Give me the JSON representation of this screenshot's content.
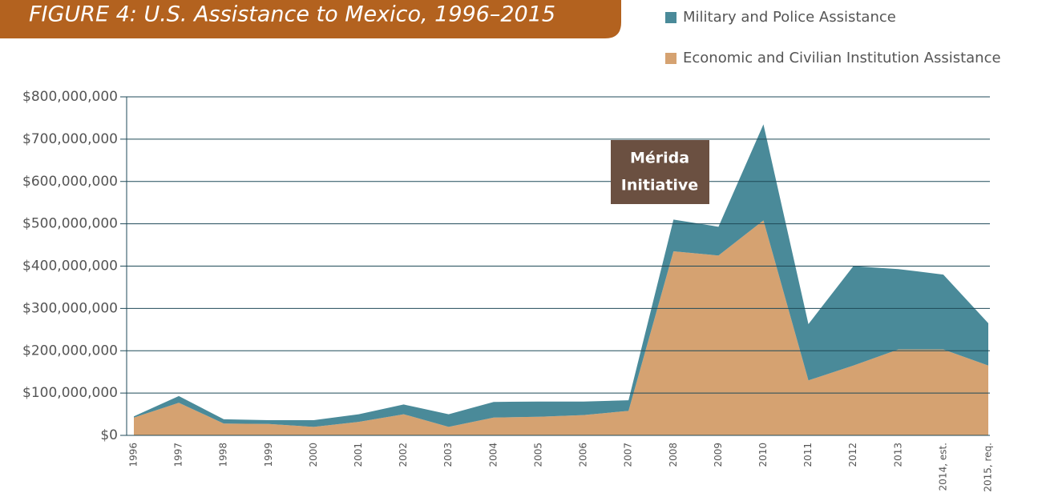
{
  "chart_data": {
    "type": "stacked-area",
    "title": "FIGURE 4: U.S. Assistance to Mexico, 1996–2015",
    "annotation": [
      "Mérida",
      "Initiative"
    ],
    "categories": [
      "1996",
      "1997",
      "1998",
      "1999",
      "2000",
      "2001",
      "2002",
      "2003",
      "2004",
      "2005",
      "2006",
      "2007",
      "2008",
      "2009",
      "2010",
      "2011",
      "2012",
      "2013",
      "2014, est.",
      "2015, req."
    ],
    "series": [
      {
        "name": "Economic and Civilian Institution Assistance",
        "color": "#d5a271",
        "values": [
          42000000,
          77000000,
          28000000,
          27000000,
          20000000,
          32000000,
          50000000,
          20000000,
          42000000,
          44000000,
          48000000,
          58000000,
          435000000,
          425000000,
          508000000,
          130000000,
          165000000,
          203000000,
          203000000,
          165000000
        ]
      },
      {
        "name": "Military and Police Assistance",
        "color": "#4a8a99",
        "values": [
          3000000,
          16000000,
          10000000,
          9000000,
          16000000,
          18000000,
          23000000,
          30000000,
          37000000,
          36000000,
          32000000,
          25000000,
          75000000,
          68000000,
          227000000,
          133000000,
          235000000,
          190000000,
          177000000,
          100000000
        ]
      }
    ],
    "ylim": [
      0,
      800000000
    ],
    "yticks": [
      {
        "value": 0,
        "label": "$0"
      },
      {
        "value": 100000000,
        "label": "$100,000,000"
      },
      {
        "value": 200000000,
        "label": "$200,000,000"
      },
      {
        "value": 300000000,
        "label": "$300,000,000"
      },
      {
        "value": 400000000,
        "label": "$400,000,000"
      },
      {
        "value": 500000000,
        "label": "$500,000,000"
      },
      {
        "value": 600000000,
        "label": "$600,000,000"
      },
      {
        "value": 700000000,
        "label": "$700,000,000"
      },
      {
        "value": 800000000,
        "label": "$800,000,000"
      }
    ],
    "grid": true
  }
}
